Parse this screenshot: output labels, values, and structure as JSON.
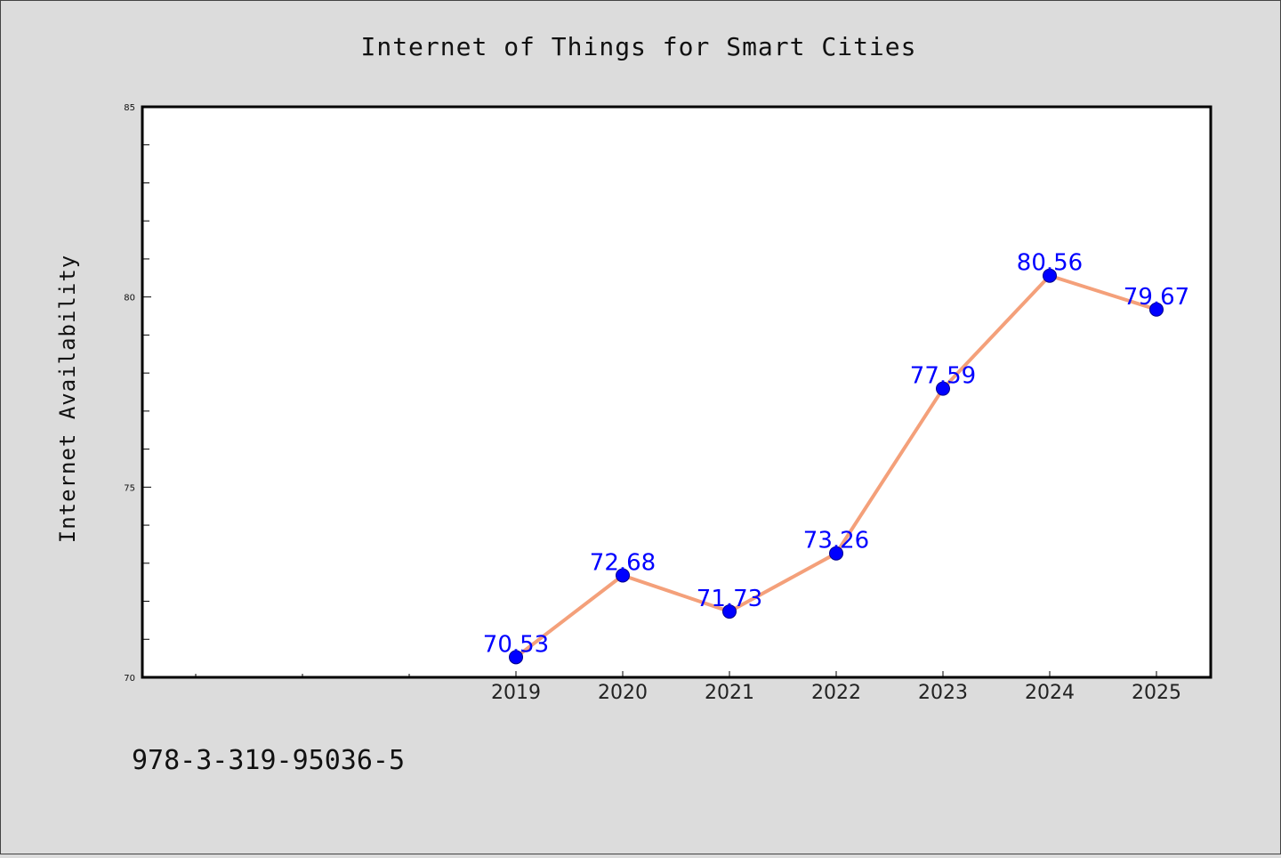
{
  "chart_data": {
    "type": "line",
    "title": "Internet of Things for Smart Cities",
    "xlabel": "",
    "ylabel": "Internet Availability",
    "categories": [
      "2019",
      "2020",
      "2021",
      "2022",
      "2023",
      "2024",
      "2025"
    ],
    "values": [
      70.53,
      72.68,
      71.73,
      73.26,
      77.59,
      80.56,
      79.67
    ],
    "data_labels": [
      "70.53",
      "72.68",
      "71.73",
      "73.26",
      "77.59",
      "80.56",
      "79.67"
    ],
    "ylim": [
      70,
      85
    ],
    "yticks": [
      "70",
      "75",
      "80",
      "85"
    ],
    "grid": false,
    "line_color": "#f4a07a",
    "marker_color": "#0000ff",
    "label_color": "#0000ff"
  },
  "footer": {
    "text": "978-3-319-95036-5"
  }
}
